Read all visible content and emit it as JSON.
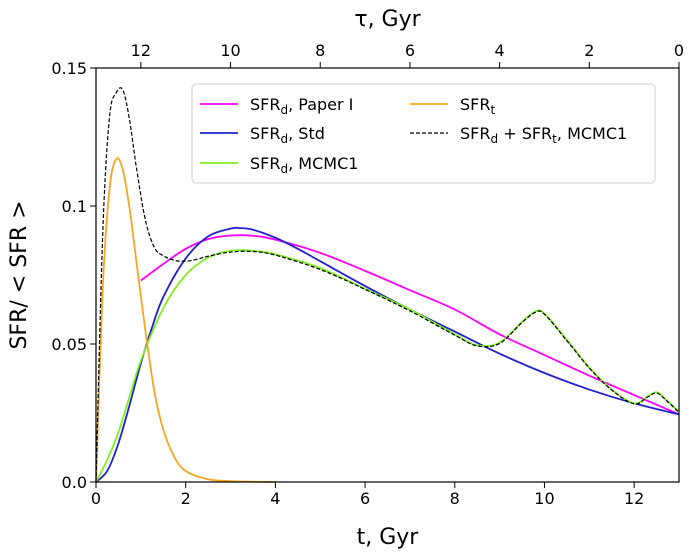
{
  "chart_data": {
    "type": "line",
    "xlabel": "t,  Gyr",
    "ylabel": "SFR/ < SFR >",
    "top_xlabel": "τ,  Gyr",
    "xlim": [
      0,
      13
    ],
    "ylim": [
      0,
      0.15
    ],
    "x_ticks": [
      0,
      2,
      4,
      6,
      8,
      10,
      12
    ],
    "x_tick_labels": [
      "0",
      "2",
      "4",
      "6",
      "8",
      "10",
      "12"
    ],
    "y_ticks": [
      0,
      0.05,
      0.1,
      0.15
    ],
    "y_tick_labels": [
      "0.0",
      "0.05",
      "0.1",
      "0.15"
    ],
    "top_axis": {
      "ticks_tau": [
        12,
        10,
        8,
        6,
        4,
        2,
        0
      ],
      "tick_labels": [
        "12",
        "10",
        "8",
        "6",
        "4",
        "2",
        "0"
      ],
      "tau_of_t": "tau = 13 - t"
    },
    "legend_position": "upper center",
    "series": [
      {
        "name": "SFR_d,  Paper I",
        "label_main": "SFR",
        "label_sub": "d",
        "label_rest": ",  Paper I",
        "color": "#ff00ff",
        "style": "solid",
        "x": [
          1.0,
          1.5,
          2.0,
          2.5,
          3.0,
          3.5,
          4.0,
          5.0,
          6.0,
          7.0,
          8.0,
          9.0,
          10.0,
          11.0,
          12.0,
          13.0
        ],
        "y": [
          0.073,
          0.079,
          0.0845,
          0.088,
          0.0893,
          0.0892,
          0.0878,
          0.083,
          0.0765,
          0.0695,
          0.0625,
          0.0535,
          0.046,
          0.0385,
          0.0315,
          0.0245
        ]
      },
      {
        "name": "SFR_d,  Std",
        "label_main": "SFR",
        "label_sub": "d",
        "label_rest": ",  Std",
        "color": "#2020d0",
        "style": "solid",
        "x": [
          0.0,
          0.25,
          0.5,
          0.75,
          1.0,
          1.25,
          1.5,
          2.0,
          2.5,
          3.0,
          3.2,
          3.5,
          4.0,
          4.5,
          5.0,
          6.0,
          7.0,
          8.0,
          9.0,
          10.0,
          11.0,
          12.0,
          13.0
        ],
        "y": [
          0.0,
          0.004,
          0.014,
          0.028,
          0.043,
          0.056,
          0.067,
          0.081,
          0.089,
          0.0918,
          0.092,
          0.0914,
          0.0885,
          0.0845,
          0.08,
          0.071,
          0.0625,
          0.0545,
          0.0465,
          0.0395,
          0.0335,
          0.0285,
          0.0245
        ]
      },
      {
        "name": "SFR_d,  MCMC1",
        "label_main": "SFR",
        "label_sub": "d",
        "label_rest": ",  MCMC1",
        "color": "#80f020",
        "style": "solid",
        "x": [
          0.0,
          0.25,
          0.5,
          0.75,
          1.0,
          1.5,
          2.0,
          2.5,
          3.0,
          3.5,
          4.0,
          5.0,
          6.0,
          7.0,
          8.0,
          8.5,
          9.0,
          9.5,
          9.8,
          10.0,
          10.5,
          11.0,
          11.5,
          12.0,
          12.3,
          12.5,
          12.7,
          13.0
        ],
        "y": [
          0.0,
          0.008,
          0.018,
          0.031,
          0.044,
          0.063,
          0.075,
          0.0813,
          0.0838,
          0.0838,
          0.0825,
          0.0775,
          0.07,
          0.0625,
          0.0535,
          0.0495,
          0.0505,
          0.058,
          0.0618,
          0.061,
          0.0515,
          0.0415,
          0.0335,
          0.0285,
          0.031,
          0.0325,
          0.03,
          0.0255
        ]
      },
      {
        "name": "SFR_t",
        "label_main": "SFR",
        "label_sub": "t",
        "label_rest": "",
        "color": "#f5a623",
        "style": "solid",
        "x": [
          0.0,
          0.15,
          0.3,
          0.45,
          0.6,
          0.75,
          0.9,
          1.1,
          1.3,
          1.5,
          1.75,
          2.0,
          2.5,
          3.0,
          3.5,
          4.0
        ],
        "y": [
          0.0,
          0.07,
          0.106,
          0.117,
          0.113,
          0.099,
          0.08,
          0.055,
          0.033,
          0.019,
          0.009,
          0.004,
          0.001,
          0.0003,
          0.0001,
          0.0
        ]
      },
      {
        "name": "SFR_d + SFR_t,  MCMC1",
        "label_main": "SFR",
        "label_sub": "d",
        "label_rest": " + SFR",
        "label_sub2": "t",
        "label_rest2": ",  MCMC1",
        "color": "#000000",
        "style": "dashed",
        "x": [
          0.0,
          0.15,
          0.3,
          0.45,
          0.6,
          0.75,
          0.9,
          1.1,
          1.3,
          1.5,
          1.75,
          2.0,
          2.25,
          2.5,
          3.0,
          3.5,
          4.0,
          5.0,
          6.0,
          7.0,
          8.0,
          8.5,
          9.0,
          9.5,
          9.8,
          10.0,
          10.5,
          11.0,
          11.5,
          12.0,
          12.3,
          12.5,
          12.7,
          13.0
        ],
        "y": [
          0.0,
          0.09,
          0.132,
          0.141,
          0.142,
          0.131,
          0.114,
          0.095,
          0.085,
          0.082,
          0.0803,
          0.08,
          0.0807,
          0.0818,
          0.0833,
          0.0835,
          0.0822,
          0.077,
          0.0698,
          0.062,
          0.0532,
          0.0493,
          0.0502,
          0.0578,
          0.0615,
          0.0608,
          0.0512,
          0.0413,
          0.0333,
          0.0283,
          0.0308,
          0.0323,
          0.0298,
          0.0252
        ]
      }
    ]
  }
}
